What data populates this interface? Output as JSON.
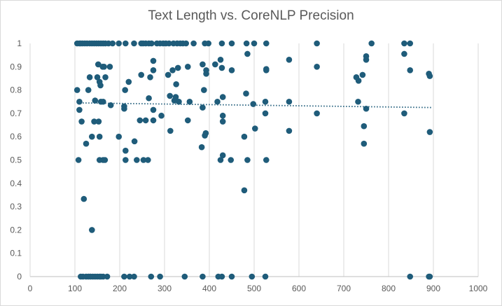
{
  "chart_data": {
    "type": "scatter",
    "title": "Text Length vs. CoreNLP Precision",
    "xlabel": "",
    "ylabel": "",
    "xlim": [
      0,
      1000
    ],
    "ylim": [
      0,
      1
    ],
    "x_ticks": [
      0,
      100,
      200,
      300,
      400,
      500,
      600,
      700,
      800,
      900,
      1000
    ],
    "y_ticks": [
      0,
      0.1,
      0.2,
      0.3,
      0.4,
      0.5,
      0.6,
      0.7,
      0.8,
      0.9,
      1
    ],
    "x_tick_labels": [
      "0",
      "100",
      "200",
      "300",
      "400",
      "500",
      "600",
      "700",
      "800",
      "900",
      "1000"
    ],
    "y_tick_labels": [
      "0",
      "0.1",
      "0.2",
      "0.3",
      "0.4",
      "0.5",
      "0.6",
      "0.7",
      "0.8",
      "0.9",
      "1"
    ],
    "grid": {
      "vertical": true,
      "horizontal": false
    },
    "marker_color": "#1f5c7a",
    "trendline": {
      "type": "linear",
      "style": "dotted",
      "x_start": 105,
      "y_start": 0.745,
      "x_end": 895,
      "y_end": 0.725
    },
    "points": [
      [
        105,
        1
      ],
      [
        110,
        1
      ],
      [
        113,
        1
      ],
      [
        117,
        1
      ],
      [
        122,
        1
      ],
      [
        127,
        1
      ],
      [
        133,
        1
      ],
      [
        138,
        1
      ],
      [
        143,
        1
      ],
      [
        148,
        1
      ],
      [
        153,
        1
      ],
      [
        158,
        1
      ],
      [
        163,
        1
      ],
      [
        168,
        1
      ],
      [
        175,
        1
      ],
      [
        184,
        1
      ],
      [
        198,
        1
      ],
      [
        213,
        1
      ],
      [
        232,
        1
      ],
      [
        248,
        1
      ],
      [
        252,
        1
      ],
      [
        258,
        1
      ],
      [
        265,
        1
      ],
      [
        271,
        1
      ],
      [
        283,
        1
      ],
      [
        290,
        1
      ],
      [
        297,
        1
      ],
      [
        303,
        1
      ],
      [
        310,
        1
      ],
      [
        320,
        1
      ],
      [
        328,
        1
      ],
      [
        335,
        1
      ],
      [
        341,
        1
      ],
      [
        348,
        1
      ],
      [
        365,
        1
      ],
      [
        390,
        1
      ],
      [
        398,
        1
      ],
      [
        428,
        1
      ],
      [
        450,
        1
      ],
      [
        483,
        1
      ],
      [
        500,
        1
      ],
      [
        527,
        1
      ],
      [
        640,
        1
      ],
      [
        762,
        1
      ],
      [
        835,
        1
      ],
      [
        848,
        1
      ],
      [
        105,
        0.8
      ],
      [
        110,
        0.75
      ],
      [
        108,
        0.5
      ],
      [
        110,
        0.715
      ],
      [
        115,
        0.665
      ],
      [
        120,
        0.333
      ],
      [
        125,
        0.57
      ],
      [
        130,
        0.8
      ],
      [
        133,
        0.855
      ],
      [
        138,
        0.2
      ],
      [
        138,
        0.6
      ],
      [
        143,
        0.665
      ],
      [
        145,
        0.755
      ],
      [
        150,
        0.855
      ],
      [
        152,
        0.91
      ],
      [
        153,
        0.665
      ],
      [
        155,
        0.5
      ],
      [
        155,
        0.835
      ],
      [
        155,
        0.6
      ],
      [
        157,
        0.82
      ],
      [
        158,
        0.75
      ],
      [
        162,
        0.9
      ],
      [
        163,
        0.75
      ],
      [
        163,
        0.5
      ],
      [
        165,
        0.9
      ],
      [
        167,
        0.5
      ],
      [
        168,
        0.855
      ],
      [
        178,
        0.9
      ],
      [
        180,
        0.735
      ],
      [
        198,
        0.6
      ],
      [
        210,
        0.73
      ],
      [
        210,
        0.72
      ],
      [
        212,
        0.8
      ],
      [
        213,
        0.5
      ],
      [
        213,
        0.54
      ],
      [
        220,
        0.835
      ],
      [
        233,
        0.58
      ],
      [
        238,
        0.5
      ],
      [
        245,
        0.67
      ],
      [
        248,
        0.865
      ],
      [
        253,
        0.5
      ],
      [
        258,
        0.67
      ],
      [
        263,
        0.5
      ],
      [
        265,
        0.765
      ],
      [
        268,
        0.855
      ],
      [
        275,
        0.925
      ],
      [
        275,
        0.885
      ],
      [
        275,
        0.715
      ],
      [
        275,
        0.67
      ],
      [
        293,
        0.69
      ],
      [
        308,
        0.865
      ],
      [
        312,
        0.775
      ],
      [
        313,
        0.625
      ],
      [
        318,
        0.885
      ],
      [
        322,
        0.755
      ],
      [
        325,
        0.77
      ],
      [
        326,
        0.825
      ],
      [
        330,
        0.895
      ],
      [
        332,
        0.75
      ],
      [
        352,
        0.9
      ],
      [
        352,
        0.67
      ],
      [
        356,
        0.75
      ],
      [
        383,
        0.555
      ],
      [
        385,
        0.91
      ],
      [
        385,
        0.725
      ],
      [
        388,
        0.8
      ],
      [
        390,
        0.605
      ],
      [
        392,
        0.615
      ],
      [
        393,
        0.885
      ],
      [
        393,
        0.87
      ],
      [
        413,
        0.91
      ],
      [
        418,
        0.75
      ],
      [
        425,
        0.5
      ],
      [
        425,
        0.93
      ],
      [
        428,
        0.895
      ],
      [
        430,
        0.69
      ],
      [
        430,
        0.665
      ],
      [
        430,
        0.77
      ],
      [
        430,
        0.52
      ],
      [
        448,
        0.5
      ],
      [
        450,
        0.885
      ],
      [
        478,
        0.6
      ],
      [
        478,
        0.37
      ],
      [
        482,
        0.785
      ],
      [
        485,
        0.955
      ],
      [
        485,
        0.5
      ],
      [
        498,
        0.74
      ],
      [
        502,
        0.635
      ],
      [
        525,
        0.75
      ],
      [
        525,
        0.7
      ],
      [
        527,
        0.5
      ],
      [
        527,
        0.885
      ],
      [
        527,
        0.89
      ],
      [
        578,
        0.93
      ],
      [
        578,
        0.75
      ],
      [
        578,
        0.625
      ],
      [
        640,
        0.9
      ],
      [
        640,
        0.7
      ],
      [
        728,
        0.855
      ],
      [
        732,
        0.75
      ],
      [
        733,
        0.84
      ],
      [
        742,
        0.865
      ],
      [
        745,
        0.57
      ],
      [
        745,
        0.645
      ],
      [
        750,
        0.945
      ],
      [
        750,
        0.93
      ],
      [
        750,
        0.72
      ],
      [
        835,
        0.955
      ],
      [
        835,
        0.7
      ],
      [
        848,
        0.885
      ],
      [
        890,
        0.87
      ],
      [
        892,
        0.86
      ],
      [
        892,
        0.62
      ],
      [
        113,
        0
      ],
      [
        118,
        0
      ],
      [
        125,
        0
      ],
      [
        130,
        0
      ],
      [
        135,
        0
      ],
      [
        140,
        0
      ],
      [
        145,
        0
      ],
      [
        150,
        0
      ],
      [
        155,
        0
      ],
      [
        158,
        0
      ],
      [
        163,
        0
      ],
      [
        172,
        0
      ],
      [
        210,
        0
      ],
      [
        222,
        0
      ],
      [
        232,
        0
      ],
      [
        270,
        0
      ],
      [
        290,
        0
      ],
      [
        345,
        0
      ],
      [
        385,
        0
      ],
      [
        420,
        0
      ],
      [
        428,
        0
      ],
      [
        450,
        0
      ],
      [
        495,
        0
      ],
      [
        525,
        0
      ],
      [
        848,
        0
      ],
      [
        890,
        0
      ],
      [
        892,
        0
      ]
    ]
  }
}
